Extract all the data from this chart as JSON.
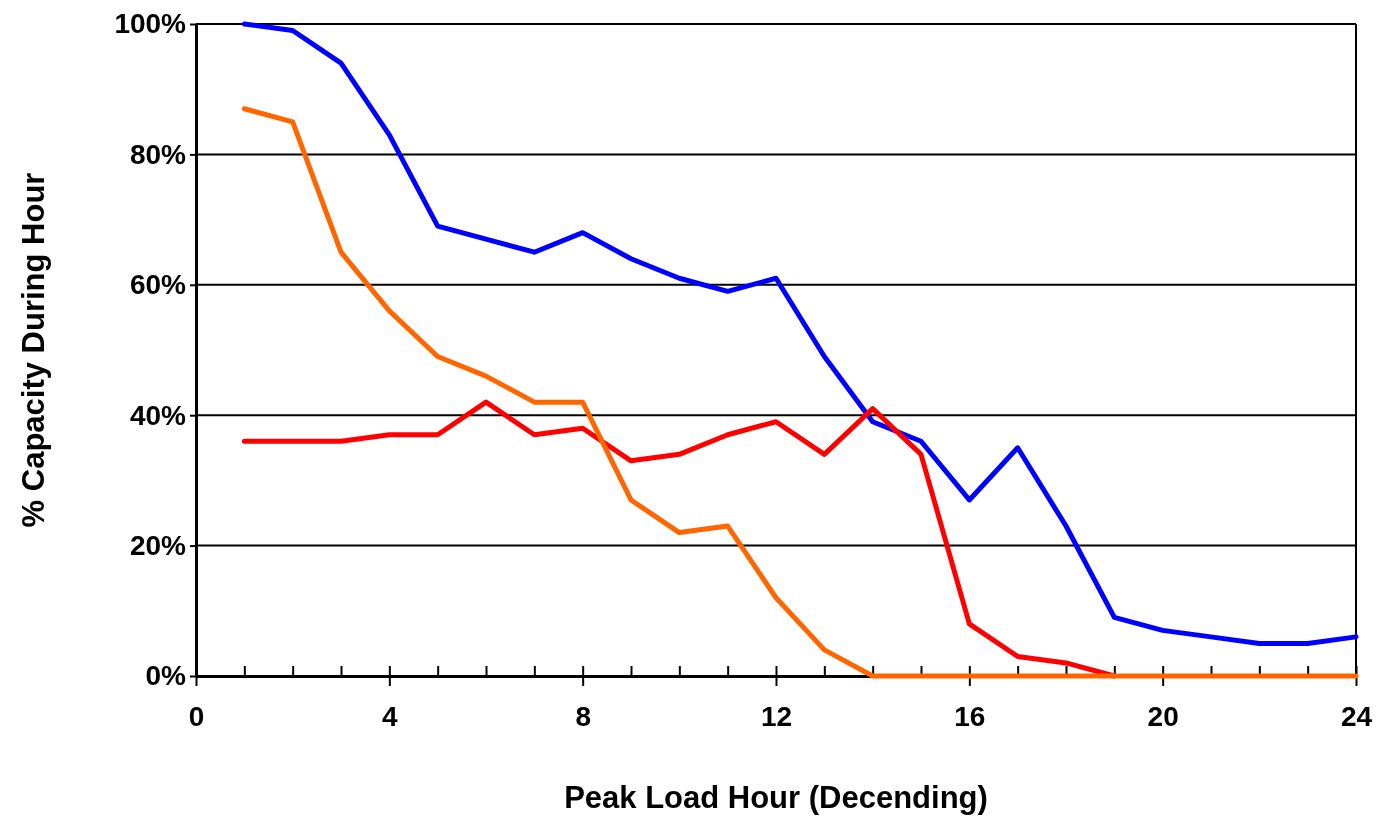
{
  "chart_data": {
    "type": "line",
    "xlabel": "Peak Load Hour (Decending)",
    "ylabel": "% Capacity During Hour",
    "x": [
      1,
      2,
      3,
      4,
      5,
      6,
      7,
      8,
      9,
      10,
      11,
      12,
      13,
      14,
      15,
      16,
      17,
      18,
      19,
      20,
      21,
      22,
      23,
      24
    ],
    "series": [
      {
        "color": "#0000ff",
        "values": [
          100,
          99,
          94,
          83,
          69,
          67,
          65,
          68,
          64,
          61,
          59,
          61,
          49,
          39,
          36,
          27,
          35,
          23,
          9,
          7,
          6,
          5,
          5,
          6
        ]
      },
      {
        "color": "#ff0000",
        "values": [
          36,
          36,
          36,
          37,
          37,
          42,
          37,
          38,
          33,
          34,
          37,
          39,
          34,
          41,
          34,
          8,
          3,
          2,
          0,
          null,
          null,
          null,
          null,
          null
        ]
      },
      {
        "color": "#ff6600",
        "values": [
          87,
          85,
          65,
          56,
          49,
          46,
          42,
          42,
          27,
          22,
          23,
          12,
          4,
          0,
          0,
          0,
          0,
          0,
          0,
          0,
          0,
          0,
          0,
          0
        ]
      }
    ],
    "xlim": [
      0,
      24
    ],
    "xticks": [
      0,
      {
        "value": 1,
        "label": null
      },
      {
        "value": 2,
        "label": null
      },
      {
        "value": 3,
        "label": null
      },
      4,
      {
        "value": 5,
        "label": null
      },
      {
        "value": 6,
        "label": null
      },
      {
        "value": 7,
        "label": null
      },
      8,
      {
        "value": 9,
        "label": null
      },
      {
        "value": 10,
        "label": null
      },
      {
        "value": 11,
        "label": null
      },
      12,
      {
        "value": 13,
        "label": null
      },
      {
        "value": 14,
        "label": null
      },
      {
        "value": 15,
        "label": null
      },
      16,
      {
        "value": 17,
        "label": null
      },
      {
        "value": 18,
        "label": null
      },
      {
        "value": 19,
        "label": null
      },
      20,
      {
        "value": 21,
        "label": null
      },
      {
        "value": 22,
        "label": null
      },
      {
        "value": 23,
        "label": null
      },
      24
    ],
    "ylim": [
      0,
      100
    ],
    "yticks": [
      {
        "value": 0,
        "label": "0%"
      },
      {
        "value": 20,
        "label": "20%"
      },
      {
        "value": 40,
        "label": "40%"
      },
      {
        "value": 60,
        "label": "60%"
      },
      {
        "value": 80,
        "label": "80%"
      },
      {
        "value": 100,
        "label": "100%"
      }
    ],
    "grid": "y",
    "line_style": "solid"
  }
}
